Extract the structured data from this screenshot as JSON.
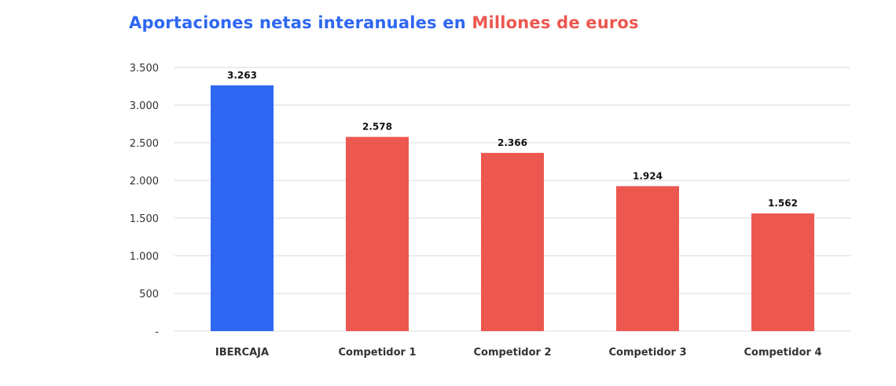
{
  "title_part1": "Aportaciones netas interanuales en",
  "title_part2": "Millones de euros",
  "chart_data": {
    "type": "bar",
    "title": "Aportaciones netas interanuales en Millones de euros",
    "categories": [
      "IBERCAJA",
      "Competidor 1",
      "Competidor 2",
      "Competidor 3",
      "Competidor 4"
    ],
    "values": [
      3263,
      2578,
      2366,
      1924,
      1562
    ],
    "value_labels": [
      "3.263",
      "2.578",
      "2.366",
      "1.924",
      "1.562"
    ],
    "bar_colors": [
      "#2e67f2",
      "#ec5750",
      "#ec5750",
      "#ec5750",
      "#ec5750"
    ],
    "ylim": [
      0,
      3500
    ],
    "yticks": [
      0,
      500,
      1000,
      1500,
      2000,
      2500,
      3000,
      3500
    ],
    "ytick_labels": [
      "-",
      "500",
      "1.000",
      "1.500",
      "2.000",
      "2.500",
      "3.000",
      "3.500"
    ],
    "xlabel": "",
    "ylabel": "",
    "grid": true,
    "gridline_color": "#d9d9d9"
  }
}
